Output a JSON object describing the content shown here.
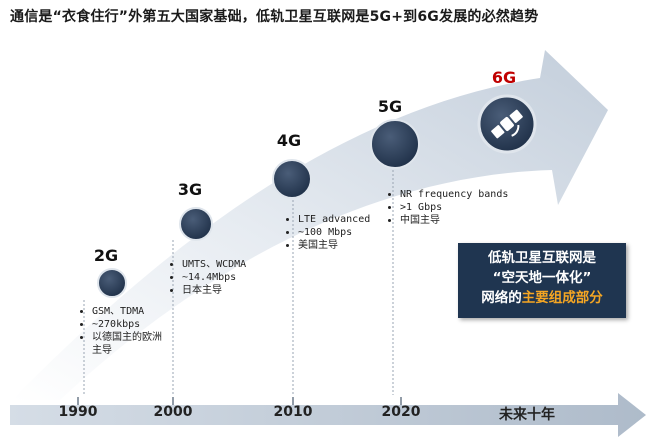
{
  "title": "通信是“衣食住行”外第五大国家基础，低轨卫星互联网是5G+到6G发展的必然趋势",
  "generations": [
    {
      "label": "2G",
      "bullets": [
        "GSM、TDMA",
        "~270kbps",
        "以德国主的欧洲主导"
      ]
    },
    {
      "label": "3G",
      "bullets": [
        "UMTS、WCDMA",
        "~14.4Mbps",
        "日本主导"
      ]
    },
    {
      "label": "4G",
      "bullets": [
        "LTE advanced",
        "~100 Mbps",
        "美国主导"
      ]
    },
    {
      "label": "5G",
      "bullets": [
        "NR frequency bands",
        ">1 Gbps",
        "中国主导"
      ]
    },
    {
      "label": "6G",
      "bullets": []
    }
  ],
  "timeline": [
    "1990",
    "2000",
    "2010",
    "2020",
    "未来十年"
  ],
  "callout": {
    "line1": "低轨卫星互联网是",
    "line2": "“空天地一体化”",
    "line3_prefix": "网络的",
    "line3_highlight": "主要组成部分"
  }
}
